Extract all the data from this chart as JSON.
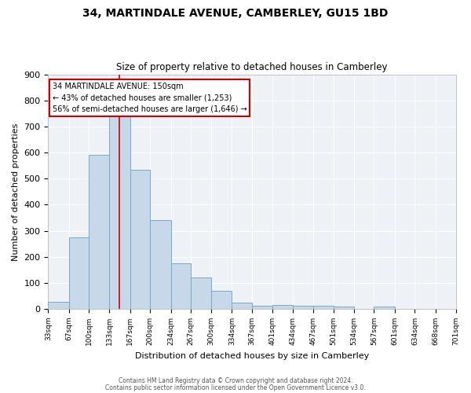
{
  "title1": "34, MARTINDALE AVENUE, CAMBERLEY, GU15 1BD",
  "title2": "Size of property relative to detached houses in Camberley",
  "xlabel": "Distribution of detached houses by size in Camberley",
  "ylabel": "Number of detached properties",
  "bar_color": "#c8d8eb",
  "bar_edge_color": "#7aaac8",
  "bin_edges": [
    33,
    67,
    100,
    133,
    167,
    200,
    234,
    267,
    300,
    334,
    367,
    401,
    434,
    467,
    501,
    534,
    567,
    601,
    634,
    668,
    701
  ],
  "bar_heights": [
    27,
    275,
    590,
    745,
    535,
    340,
    175,
    120,
    70,
    25,
    13,
    15,
    11,
    11,
    10,
    0,
    10,
    0,
    0,
    0
  ],
  "xtick_labels": [
    "33sqm",
    "67sqm",
    "100sqm",
    "133sqm",
    "167sqm",
    "200sqm",
    "234sqm",
    "267sqm",
    "300sqm",
    "334sqm",
    "367sqm",
    "401sqm",
    "434sqm",
    "467sqm",
    "501sqm",
    "534sqm",
    "567sqm",
    "601sqm",
    "634sqm",
    "668sqm",
    "701sqm"
  ],
  "ylim": [
    0,
    900
  ],
  "yticks": [
    0,
    100,
    200,
    300,
    400,
    500,
    600,
    700,
    800,
    900
  ],
  "property_size": 150,
  "annotation_line1": "34 MARTINDALE AVENUE: 150sqm",
  "annotation_line2": "← 43% of detached houses are smaller (1,253)",
  "annotation_line3": "56% of semi-detached houses are larger (1,646) →",
  "annotation_box_color": "#ffffff",
  "annotation_border_color": "#cc0000",
  "vline_color": "#cc0000",
  "bg_color": "#eef2f7",
  "grid_color": "#ffffff",
  "footer1": "Contains HM Land Registry data © Crown copyright and database right 2024.",
  "footer2": "Contains public sector information licensed under the Open Government Licence v3.0."
}
